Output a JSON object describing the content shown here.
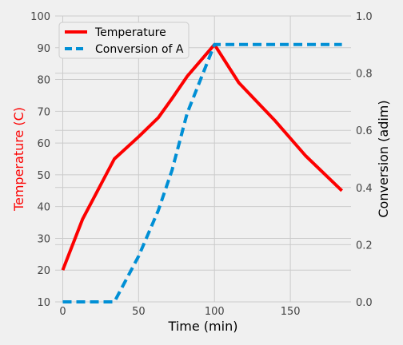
{
  "chart_data": {
    "type": "line",
    "title": "",
    "xlabel": "Time (min)",
    "ylabel_left": "Temperature (C)",
    "ylabel_right": "Conversion (adim)",
    "xlim": [
      -5,
      190
    ],
    "ylim_left": [
      10,
      100
    ],
    "ylim_right": [
      0.0,
      1.0
    ],
    "x_ticks": [
      0,
      50,
      100,
      150
    ],
    "y_left_ticks": [
      10,
      20,
      30,
      40,
      50,
      60,
      70,
      80,
      90,
      100
    ],
    "y_right_ticks": [
      "0.0",
      "0.2",
      "0.4",
      "0.6",
      "0.8",
      "1.0"
    ],
    "grid": true,
    "legend_position": "top-left",
    "series": [
      {
        "name": "Temperature",
        "axis": "left",
        "color": "#fc0000",
        "style": "solid",
        "x": [
          0,
          13,
          34,
          50,
          63,
          72,
          82,
          100,
          116,
          140,
          160,
          184
        ],
        "y": [
          20,
          36,
          55,
          62,
          68,
          74,
          81,
          91,
          79,
          67,
          56,
          45
        ]
      },
      {
        "name": "Conversion of A",
        "axis": "right",
        "color": "#008fd5",
        "style": "dashed",
        "x": [
          0,
          34,
          50,
          63,
          72,
          82,
          100,
          184
        ],
        "y": [
          0.0,
          0.0,
          0.16,
          0.32,
          0.46,
          0.66,
          0.9,
          0.9
        ]
      }
    ]
  }
}
